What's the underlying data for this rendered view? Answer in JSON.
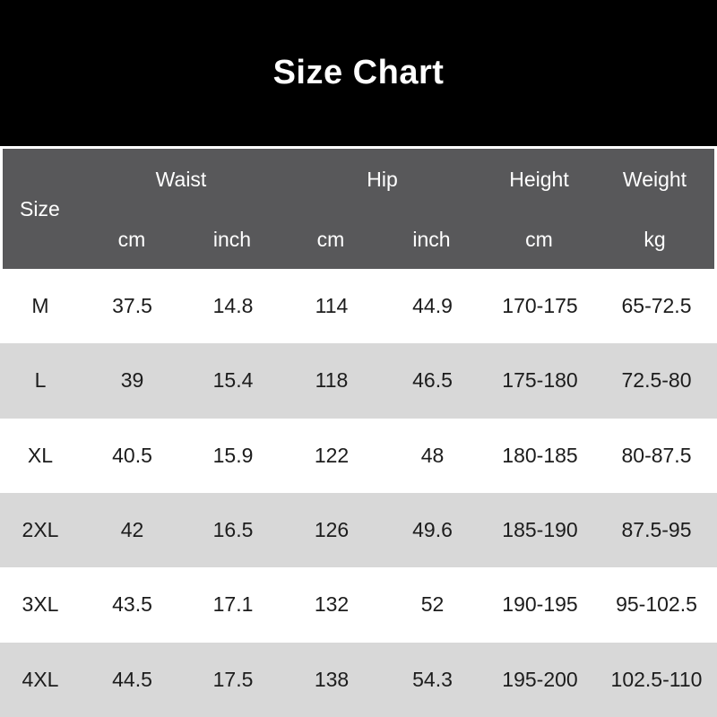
{
  "title": "Size Chart",
  "colors": {
    "title_bg": "#000000",
    "title_text": "#ffffff",
    "header_bg": "#58585a",
    "header_text": "#ffffff",
    "row_bg": "#ffffff",
    "row_alt_bg": "#d8d8d8",
    "cell_text": "#1c1c1c"
  },
  "chart_data": {
    "type": "table",
    "title": "Size Chart",
    "columns": [
      "Size",
      "Waist cm",
      "Waist inch",
      "Hip cm",
      "Hip inch",
      "Height cm",
      "Weight kg"
    ],
    "header": {
      "size_label": "Size",
      "groups": [
        {
          "label": "Waist",
          "span": 2
        },
        {
          "label": "Hip",
          "span": 2
        },
        {
          "label": "Height",
          "span": 1
        },
        {
          "label": "Weight",
          "span": 1
        }
      ],
      "units": [
        "cm",
        "inch",
        "cm",
        "inch",
        "cm",
        "kg"
      ]
    },
    "rows": [
      {
        "size": "M",
        "values": [
          "37.5",
          "14.8",
          "114",
          "44.9",
          "170-175",
          "65-72.5"
        ]
      },
      {
        "size": "L",
        "values": [
          "39",
          "15.4",
          "118",
          "46.5",
          "175-180",
          "72.5-80"
        ]
      },
      {
        "size": "XL",
        "values": [
          "40.5",
          "15.9",
          "122",
          "48",
          "180-185",
          "80-87.5"
        ]
      },
      {
        "size": "2XL",
        "values": [
          "42",
          "16.5",
          "126",
          "49.6",
          "185-190",
          "87.5-95"
        ]
      },
      {
        "size": "3XL",
        "values": [
          "43.5",
          "17.1",
          "132",
          "52",
          "190-195",
          "95-102.5"
        ]
      },
      {
        "size": "4XL",
        "values": [
          "44.5",
          "17.5",
          "138",
          "54.3",
          "195-200",
          "102.5-110"
        ]
      }
    ]
  }
}
